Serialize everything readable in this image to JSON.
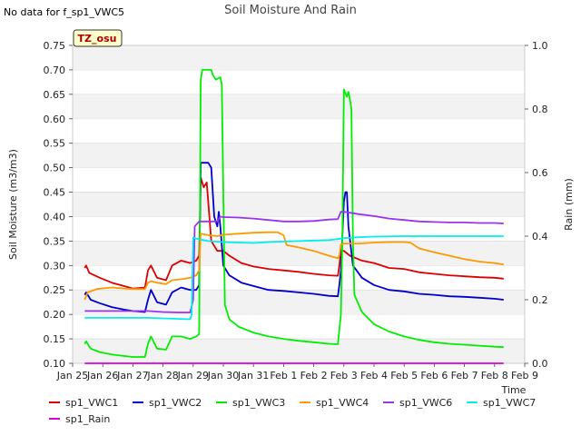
{
  "no_data_note": "No data for f_sp1_VWC5",
  "chart_data": {
    "type": "line",
    "title": "Soil Moisture And Rain",
    "site_label": "TZ_osu",
    "xlabel": "Time",
    "ylabel": "Soil Moisture (m3/m3)",
    "y2label": "Rain (mm)",
    "xlim": [
      0,
      15
    ],
    "ylim": [
      0.1,
      0.75
    ],
    "y2lim": [
      0.0,
      1.0
    ],
    "x_tick_labels": [
      "Jan 25",
      "Jan 26",
      "Jan 27",
      "Jan 28",
      "Jan 29",
      "Jan 30",
      "Jan 31",
      "Feb 1",
      "Feb 2",
      "Feb 3",
      "Feb 4",
      "Feb 5",
      "Feb 6",
      "Feb 7",
      "Feb 8",
      "Feb 9"
    ],
    "y_ticks": [
      "0.10",
      "0.15",
      "0.20",
      "0.25",
      "0.30",
      "0.35",
      "0.40",
      "0.45",
      "0.50",
      "0.55",
      "0.60",
      "0.65",
      "0.70",
      "0.75"
    ],
    "y2_ticks": [
      "0.0",
      "0.2",
      "0.4",
      "0.6",
      "0.8",
      "1.0"
    ],
    "grid": "horizontal bands",
    "legend_position": "bottom",
    "series": [
      {
        "name": "sp1_VWC1",
        "color": "#dd0000",
        "axis": "left",
        "points": [
          [
            0.4,
            0.295
          ],
          [
            0.45,
            0.3
          ],
          [
            0.55,
            0.285
          ],
          [
            0.9,
            0.275
          ],
          [
            1.3,
            0.265
          ],
          [
            1.7,
            0.258
          ],
          [
            2.0,
            0.253
          ],
          [
            2.4,
            0.255
          ],
          [
            2.5,
            0.29
          ],
          [
            2.6,
            0.3
          ],
          [
            2.8,
            0.275
          ],
          [
            3.1,
            0.27
          ],
          [
            3.3,
            0.3
          ],
          [
            3.6,
            0.31
          ],
          [
            3.9,
            0.305
          ],
          [
            4.1,
            0.31
          ],
          [
            4.2,
            0.32
          ],
          [
            4.25,
            0.48
          ],
          [
            4.35,
            0.46
          ],
          [
            4.45,
            0.47
          ],
          [
            4.5,
            0.43
          ],
          [
            4.6,
            0.35
          ],
          [
            4.8,
            0.33
          ],
          [
            5.0,
            0.33
          ],
          [
            5.2,
            0.32
          ],
          [
            5.6,
            0.305
          ],
          [
            6.0,
            0.298
          ],
          [
            6.5,
            0.293
          ],
          [
            7.0,
            0.29
          ],
          [
            7.5,
            0.287
          ],
          [
            8.0,
            0.283
          ],
          [
            8.5,
            0.28
          ],
          [
            8.8,
            0.279
          ],
          [
            8.85,
            0.3
          ],
          [
            8.9,
            0.33
          ],
          [
            9.0,
            0.33
          ],
          [
            9.2,
            0.32
          ],
          [
            9.6,
            0.31
          ],
          [
            10.0,
            0.305
          ],
          [
            10.5,
            0.295
          ],
          [
            11.0,
            0.293
          ],
          [
            11.5,
            0.286
          ],
          [
            12.0,
            0.283
          ],
          [
            12.5,
            0.28
          ],
          [
            13.0,
            0.278
          ],
          [
            13.5,
            0.276
          ],
          [
            14.0,
            0.275
          ],
          [
            14.3,
            0.273
          ]
        ]
      },
      {
        "name": "sp1_VWC2",
        "color": "#0000cc",
        "axis": "left",
        "points": [
          [
            0.4,
            0.24
          ],
          [
            0.45,
            0.245
          ],
          [
            0.6,
            0.23
          ],
          [
            0.9,
            0.223
          ],
          [
            1.3,
            0.215
          ],
          [
            1.7,
            0.21
          ],
          [
            2.0,
            0.207
          ],
          [
            2.4,
            0.205
          ],
          [
            2.5,
            0.23
          ],
          [
            2.6,
            0.25
          ],
          [
            2.8,
            0.225
          ],
          [
            3.1,
            0.22
          ],
          [
            3.3,
            0.245
          ],
          [
            3.6,
            0.255
          ],
          [
            3.9,
            0.25
          ],
          [
            4.1,
            0.25
          ],
          [
            4.2,
            0.26
          ],
          [
            4.25,
            0.51
          ],
          [
            4.5,
            0.51
          ],
          [
            4.6,
            0.5
          ],
          [
            4.7,
            0.4
          ],
          [
            4.8,
            0.38
          ],
          [
            4.85,
            0.41
          ],
          [
            4.9,
            0.38
          ],
          [
            5.0,
            0.3
          ],
          [
            5.2,
            0.28
          ],
          [
            5.6,
            0.265
          ],
          [
            6.0,
            0.258
          ],
          [
            6.5,
            0.25
          ],
          [
            7.0,
            0.248
          ],
          [
            7.5,
            0.245
          ],
          [
            8.0,
            0.242
          ],
          [
            8.5,
            0.238
          ],
          [
            8.8,
            0.237
          ],
          [
            8.85,
            0.26
          ],
          [
            8.9,
            0.29
          ],
          [
            9.0,
            0.43
          ],
          [
            9.05,
            0.45
          ],
          [
            9.1,
            0.45
          ],
          [
            9.15,
            0.38
          ],
          [
            9.3,
            0.3
          ],
          [
            9.6,
            0.275
          ],
          [
            10.0,
            0.26
          ],
          [
            10.5,
            0.25
          ],
          [
            11.0,
            0.247
          ],
          [
            11.5,
            0.242
          ],
          [
            12.0,
            0.24
          ],
          [
            12.5,
            0.237
          ],
          [
            13.0,
            0.236
          ],
          [
            13.5,
            0.234
          ],
          [
            14.0,
            0.232
          ],
          [
            14.3,
            0.23
          ]
        ]
      },
      {
        "name": "sp1_VWC3",
        "color": "#00ee00",
        "axis": "left",
        "points": [
          [
            0.4,
            0.14
          ],
          [
            0.45,
            0.145
          ],
          [
            0.6,
            0.13
          ],
          [
            0.9,
            0.123
          ],
          [
            1.3,
            0.118
          ],
          [
            1.7,
            0.115
          ],
          [
            2.0,
            0.113
          ],
          [
            2.4,
            0.113
          ],
          [
            2.5,
            0.14
          ],
          [
            2.6,
            0.155
          ],
          [
            2.8,
            0.13
          ],
          [
            3.1,
            0.128
          ],
          [
            3.3,
            0.155
          ],
          [
            3.6,
            0.155
          ],
          [
            3.9,
            0.15
          ],
          [
            4.1,
            0.155
          ],
          [
            4.2,
            0.16
          ],
          [
            4.25,
            0.68
          ],
          [
            4.3,
            0.7
          ],
          [
            4.5,
            0.7
          ],
          [
            4.6,
            0.7
          ],
          [
            4.65,
            0.69
          ],
          [
            4.75,
            0.68
          ],
          [
            4.9,
            0.685
          ],
          [
            4.95,
            0.67
          ],
          [
            5.0,
            0.45
          ],
          [
            5.05,
            0.22
          ],
          [
            5.2,
            0.19
          ],
          [
            5.5,
            0.175
          ],
          [
            6.0,
            0.163
          ],
          [
            6.5,
            0.155
          ],
          [
            7.0,
            0.15
          ],
          [
            7.5,
            0.146
          ],
          [
            8.0,
            0.143
          ],
          [
            8.5,
            0.14
          ],
          [
            8.8,
            0.139
          ],
          [
            8.9,
            0.2
          ],
          [
            8.95,
            0.35
          ],
          [
            9.0,
            0.66
          ],
          [
            9.1,
            0.645
          ],
          [
            9.15,
            0.655
          ],
          [
            9.2,
            0.64
          ],
          [
            9.25,
            0.62
          ],
          [
            9.3,
            0.35
          ],
          [
            9.35,
            0.24
          ],
          [
            9.6,
            0.205
          ],
          [
            10.0,
            0.18
          ],
          [
            10.5,
            0.165
          ],
          [
            11.0,
            0.155
          ],
          [
            11.5,
            0.148
          ],
          [
            12.0,
            0.143
          ],
          [
            12.5,
            0.14
          ],
          [
            13.0,
            0.138
          ],
          [
            13.5,
            0.136
          ],
          [
            14.0,
            0.134
          ],
          [
            14.3,
            0.133
          ]
        ]
      },
      {
        "name": "sp1_VWC4",
        "color": "#ff9900",
        "axis": "left",
        "points": [
          [
            0.4,
            0.23
          ],
          [
            0.5,
            0.245
          ],
          [
            0.8,
            0.252
          ],
          [
            1.3,
            0.255
          ],
          [
            1.7,
            0.253
          ],
          [
            2.0,
            0.252
          ],
          [
            2.4,
            0.252
          ],
          [
            2.5,
            0.265
          ],
          [
            2.6,
            0.268
          ],
          [
            2.8,
            0.265
          ],
          [
            3.1,
            0.262
          ],
          [
            3.3,
            0.27
          ],
          [
            3.6,
            0.272
          ],
          [
            3.9,
            0.275
          ],
          [
            4.1,
            0.28
          ],
          [
            4.2,
            0.29
          ],
          [
            4.25,
            0.365
          ],
          [
            4.5,
            0.362
          ],
          [
            4.8,
            0.36
          ],
          [
            5.0,
            0.363
          ],
          [
            5.5,
            0.365
          ],
          [
            6.0,
            0.367
          ],
          [
            6.5,
            0.368
          ],
          [
            6.8,
            0.368
          ],
          [
            7.0,
            0.362
          ],
          [
            7.1,
            0.342
          ],
          [
            7.5,
            0.337
          ],
          [
            8.0,
            0.33
          ],
          [
            8.5,
            0.32
          ],
          [
            8.8,
            0.315
          ],
          [
            8.85,
            0.32
          ],
          [
            8.9,
            0.343
          ],
          [
            9.0,
            0.345
          ],
          [
            9.5,
            0.345
          ],
          [
            10.0,
            0.347
          ],
          [
            10.5,
            0.348
          ],
          [
            11.0,
            0.348
          ],
          [
            11.2,
            0.347
          ],
          [
            11.5,
            0.335
          ],
          [
            12.0,
            0.327
          ],
          [
            12.5,
            0.32
          ],
          [
            13.0,
            0.313
          ],
          [
            13.5,
            0.308
          ],
          [
            14.0,
            0.305
          ],
          [
            14.3,
            0.302
          ]
        ]
      },
      {
        "name": "sp1_VWC6",
        "color": "#9933ee",
        "axis": "left",
        "points": [
          [
            0.4,
            0.207
          ],
          [
            1.0,
            0.207
          ],
          [
            1.5,
            0.207
          ],
          [
            2.0,
            0.207
          ],
          [
            2.5,
            0.207
          ],
          [
            3.0,
            0.205
          ],
          [
            3.5,
            0.204
          ],
          [
            3.9,
            0.204
          ],
          [
            4.0,
            0.23
          ],
          [
            4.05,
            0.38
          ],
          [
            4.2,
            0.39
          ],
          [
            4.5,
            0.39
          ],
          [
            4.8,
            0.39
          ],
          [
            4.9,
            0.4
          ],
          [
            5.0,
            0.399
          ],
          [
            5.5,
            0.398
          ],
          [
            6.0,
            0.396
          ],
          [
            6.5,
            0.393
          ],
          [
            7.0,
            0.39
          ],
          [
            7.5,
            0.39
          ],
          [
            8.0,
            0.391
          ],
          [
            8.5,
            0.394
          ],
          [
            8.8,
            0.395
          ],
          [
            8.9,
            0.41
          ],
          [
            9.0,
            0.41
          ],
          [
            9.5,
            0.405
          ],
          [
            10.0,
            0.401
          ],
          [
            10.5,
            0.396
          ],
          [
            11.0,
            0.393
          ],
          [
            11.5,
            0.39
          ],
          [
            12.0,
            0.389
          ],
          [
            12.5,
            0.388
          ],
          [
            13.0,
            0.388
          ],
          [
            13.5,
            0.387
          ],
          [
            14.0,
            0.387
          ],
          [
            14.3,
            0.386
          ]
        ]
      },
      {
        "name": "sp1_VWC7",
        "color": "#00eeee",
        "axis": "left",
        "points": [
          [
            0.4,
            0.193
          ],
          [
            1.0,
            0.193
          ],
          [
            1.5,
            0.193
          ],
          [
            2.0,
            0.193
          ],
          [
            2.5,
            0.193
          ],
          [
            3.0,
            0.192
          ],
          [
            3.5,
            0.191
          ],
          [
            3.9,
            0.19
          ],
          [
            3.95,
            0.2
          ],
          [
            4.0,
            0.357
          ],
          [
            4.1,
            0.355
          ],
          [
            4.5,
            0.35
          ],
          [
            5.0,
            0.348
          ],
          [
            5.5,
            0.347
          ],
          [
            6.0,
            0.346
          ],
          [
            6.5,
            0.348
          ],
          [
            7.0,
            0.349
          ],
          [
            7.5,
            0.35
          ],
          [
            8.0,
            0.351
          ],
          [
            8.5,
            0.352
          ],
          [
            8.8,
            0.354
          ],
          [
            9.0,
            0.356
          ],
          [
            9.5,
            0.358
          ],
          [
            10.0,
            0.359
          ],
          [
            11.0,
            0.36
          ],
          [
            12.0,
            0.36
          ],
          [
            13.0,
            0.36
          ],
          [
            14.0,
            0.36
          ],
          [
            14.3,
            0.36
          ]
        ]
      },
      {
        "name": "sp1_Rain",
        "color": "#dd00dd",
        "axis": "right",
        "points": [
          [
            0.4,
            0.0
          ],
          [
            14.3,
            0.0
          ]
        ]
      }
    ]
  }
}
